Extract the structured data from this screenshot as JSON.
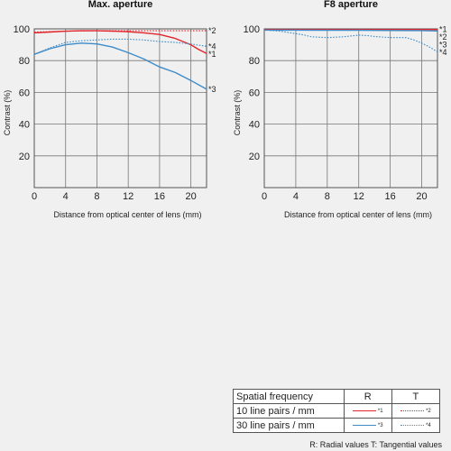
{
  "chart_data": [
    {
      "type": "line",
      "title": "Max. aperture",
      "xlabel": "Distance from optical center of lens (mm)",
      "ylabel": "Contrast (%)",
      "xlim": [
        0,
        22
      ],
      "ylim": [
        0,
        100
      ],
      "xticks": [
        "0",
        "4",
        "8",
        "12",
        "16",
        "20"
      ],
      "yticks": [
        "20",
        "40",
        "60",
        "80",
        "100"
      ],
      "grid": true,
      "series": [
        {
          "name": "*1",
          "color": "#e0262c",
          "style": "solid",
          "x": [
            0,
            2,
            4,
            6,
            8,
            10,
            12,
            14,
            16,
            18,
            19,
            20,
            21,
            22
          ],
          "y": [
            97.5,
            98,
            98.5,
            98.8,
            98.8,
            98.6,
            98.2,
            97.5,
            96.5,
            94,
            92,
            90,
            87,
            84.5
          ]
        },
        {
          "name": "*2",
          "color": "#e0262c",
          "style": "dotted",
          "x": [
            0,
            4,
            8,
            12,
            16,
            20,
            22
          ],
          "y": [
            98,
            98.5,
            98.8,
            98.8,
            98.8,
            98.8,
            98.8
          ]
        },
        {
          "name": "*3",
          "color": "#3d8bc8",
          "style": "solid",
          "x": [
            0,
            2,
            4,
            6,
            8,
            10,
            12,
            14,
            16,
            18,
            20,
            22
          ],
          "y": [
            84,
            87.5,
            90,
            91,
            90.5,
            88.5,
            85,
            81,
            76,
            72.5,
            67.5,
            62
          ]
        },
        {
          "name": "*4",
          "color": "#3d8bc8",
          "style": "dotted",
          "x": [
            0,
            2,
            4,
            6,
            8,
            10,
            12,
            14,
            16,
            18,
            20,
            22
          ],
          "y": [
            84,
            88,
            91.5,
            92.5,
            93,
            93.5,
            93.5,
            93,
            92,
            91.5,
            90.5,
            89
          ]
        }
      ]
    },
    {
      "type": "line",
      "title": "F8 aperture",
      "xlabel": "Distance from optical center of lens (mm)",
      "ylabel": "Contrast (%)",
      "xlim": [
        0,
        22
      ],
      "ylim": [
        0,
        100
      ],
      "xticks": [
        "0",
        "4",
        "8",
        "12",
        "16",
        "20"
      ],
      "yticks": [
        "20",
        "40",
        "60",
        "80",
        "100"
      ],
      "grid": true,
      "series": [
        {
          "name": "*1",
          "color": "#e0262c",
          "style": "solid",
          "x": [
            0,
            4,
            8,
            12,
            16,
            20,
            22
          ],
          "y": [
            99.6,
            99.6,
            99.6,
            99.6,
            99.6,
            99.6,
            99.6
          ]
        },
        {
          "name": "*2",
          "color": "#e0262c",
          "style": "dotted",
          "x": [
            0,
            4,
            8,
            12,
            16,
            20,
            22
          ],
          "y": [
            99.3,
            99.3,
            99.2,
            99.2,
            99.1,
            99,
            98.8
          ]
        },
        {
          "name": "*3",
          "color": "#3d8bc8",
          "style": "solid",
          "x": [
            0,
            4,
            8,
            12,
            16,
            20,
            22
          ],
          "y": [
            99.2,
            99.2,
            99.1,
            99.1,
            99,
            98.9,
            98.7
          ]
        },
        {
          "name": "*4",
          "color": "#3d8bc8",
          "style": "dotted",
          "x": [
            0,
            2,
            4,
            5,
            6,
            8,
            10,
            12,
            13,
            14,
            16,
            18,
            19,
            20,
            21,
            22
          ],
          "y": [
            99.4,
            98.5,
            97,
            96.2,
            95,
            94.5,
            95,
            96,
            95.8,
            95.2,
            94.5,
            94.5,
            93,
            91,
            88.5,
            85.5
          ]
        }
      ]
    }
  ],
  "legend": {
    "header": [
      "Spatial frequency",
      "R",
      "T"
    ],
    "rows": [
      {
        "label": "10 line pairs / mm",
        "r_tag": "*1",
        "t_tag": "*2",
        "color": "#e0262c"
      },
      {
        "label": "30 line pairs / mm",
        "r_tag": "*3",
        "t_tag": "*4",
        "color": "#3d8bc8"
      }
    ],
    "note": "R: Radial values  T: Tangential values"
  }
}
